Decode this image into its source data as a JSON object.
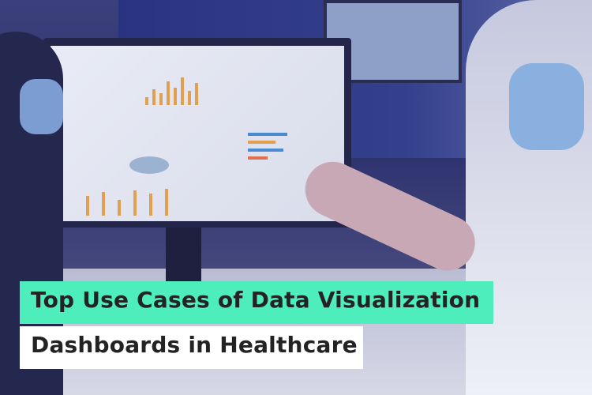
{
  "banner": {
    "title_line1": "Top Use Cases of Data Visualization",
    "title_line2": "Dashboards in Healthcare",
    "accent_color": "#4eedbc",
    "text_color": "#232323"
  }
}
